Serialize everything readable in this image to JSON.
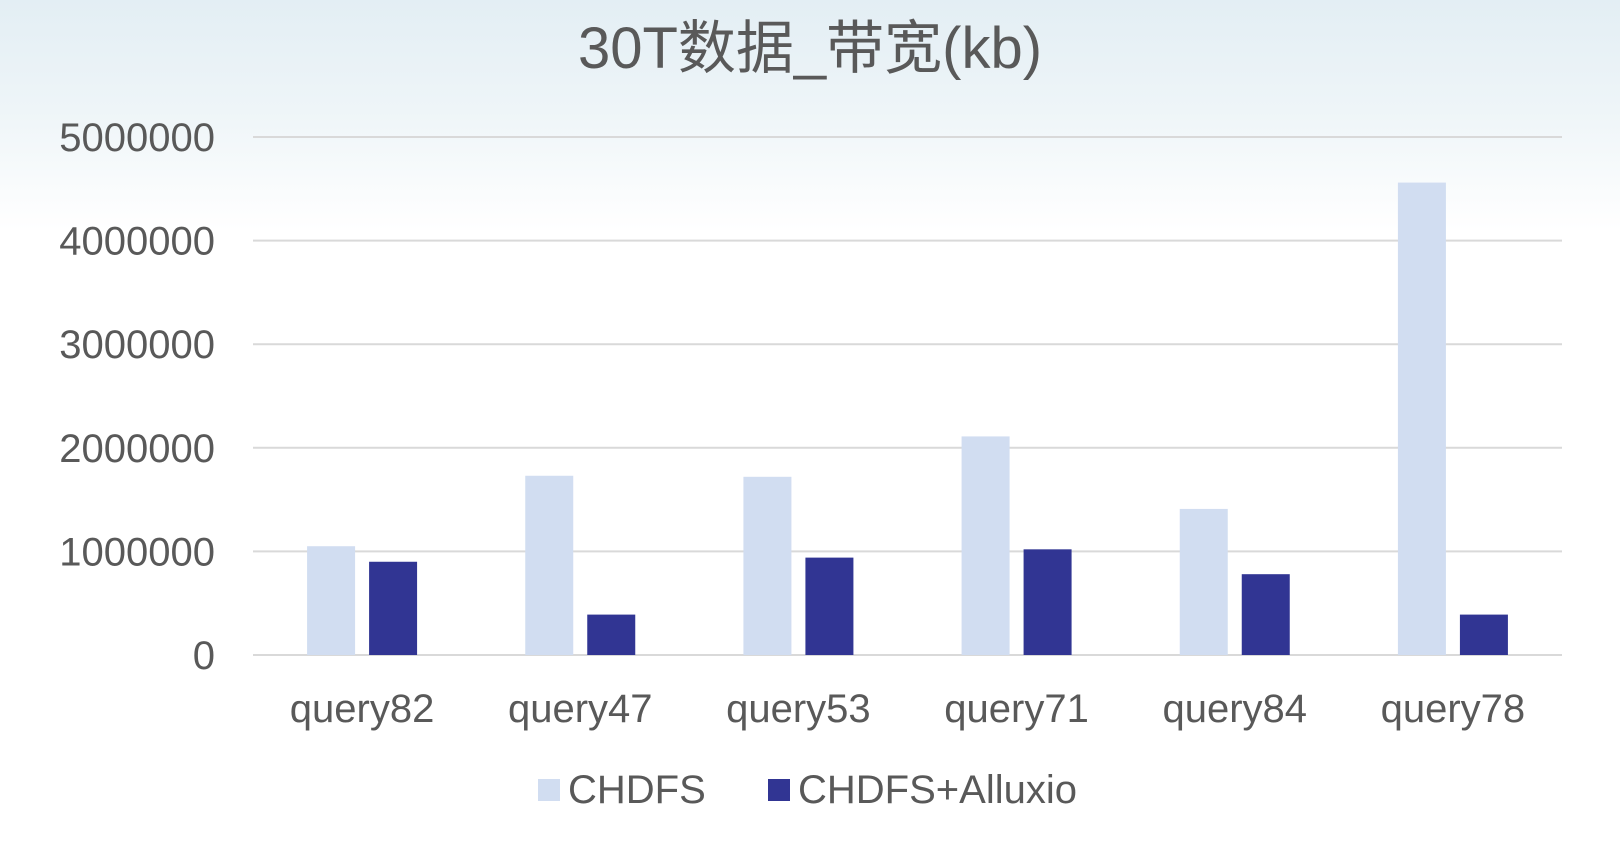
{
  "chart_data": {
    "type": "bar",
    "title": "30T数据_带宽(kb)",
    "xlabel": "",
    "ylabel": "",
    "categories": [
      "query82",
      "query47",
      "query53",
      "query71",
      "query84",
      "query78"
    ],
    "series": [
      {
        "name": "CHDFS",
        "color": "#d1ddf1",
        "values": [
          1050000,
          1730000,
          1720000,
          2110000,
          1410000,
          4560000
        ]
      },
      {
        "name": "CHDFS+Alluxio",
        "color": "#313593",
        "values": [
          900000,
          390000,
          940000,
          1020000,
          780000,
          390000
        ]
      }
    ],
    "ylim": [
      0,
      5000000
    ],
    "yticks": [
      0,
      1000000,
      2000000,
      3000000,
      4000000,
      5000000
    ],
    "grid": true,
    "legend_position": "bottom"
  }
}
